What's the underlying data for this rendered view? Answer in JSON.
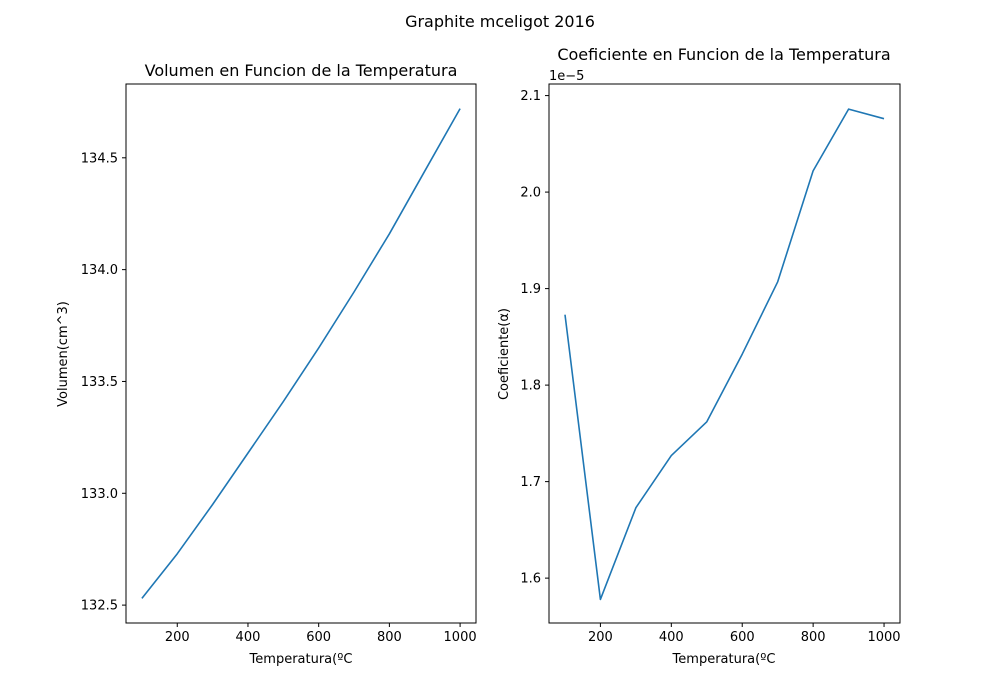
{
  "figure": {
    "suptitle": "Graphite mceligot 2016"
  },
  "chart_data": [
    {
      "type": "line",
      "title": "Volumen en Funcion de la Temperatura",
      "xlabel": "Temperatura(ºC",
      "ylabel": "Volumen(cm^3)",
      "xlim": [
        55,
        1045
      ],
      "ylim": [
        132.42,
        134.83
      ],
      "xticks": [
        200,
        400,
        600,
        800,
        1000
      ],
      "yticks": [
        132.5,
        133.0,
        133.5,
        134.0,
        134.5
      ],
      "ytick_labels": [
        "132.5",
        "133.0",
        "133.5",
        "134.0",
        "134.5"
      ],
      "grid": false,
      "color": "#1f77b4",
      "series": [
        {
          "x": [
            100,
            200,
            300,
            400,
            500,
            600,
            700,
            800,
            900,
            1000
          ],
          "y": [
            132.53,
            132.73,
            132.95,
            133.18,
            133.41,
            133.65,
            133.9,
            134.16,
            134.44,
            134.72
          ]
        }
      ]
    },
    {
      "type": "line",
      "title": "Coeficiente en Funcion de la Temperatura",
      "xlabel": "Temperatura(ºC",
      "ylabel": "Coeficiente(α)",
      "offset_text": "1e−5",
      "xlim": [
        55,
        1045
      ],
      "ylim": [
        1.5535,
        2.112
      ],
      "xticks": [
        200,
        400,
        600,
        800,
        1000
      ],
      "yticks": [
        1.6,
        1.7,
        1.8,
        1.9,
        2.0,
        2.1
      ],
      "ytick_labels": [
        "1.6",
        "1.7",
        "1.8",
        "1.9",
        "2.0",
        "2.1"
      ],
      "grid": false,
      "color": "#1f77b4",
      "series": [
        {
          "x": [
            100,
            200,
            300,
            400,
            500,
            600,
            700,
            800,
            900,
            1000
          ],
          "y": [
            1.873,
            1.578,
            1.673,
            1.727,
            1.762,
            1.832,
            1.907,
            2.022,
            2.086,
            2.076
          ]
        }
      ]
    }
  ]
}
